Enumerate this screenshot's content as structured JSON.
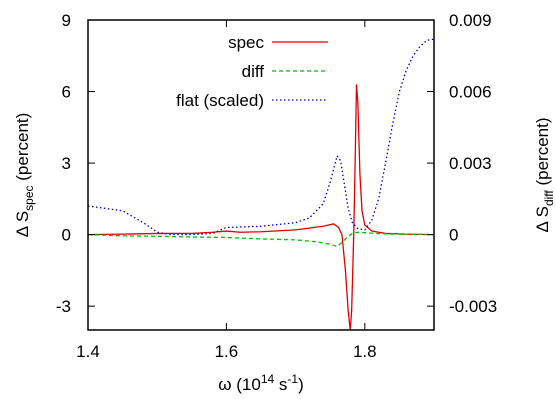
{
  "chart_data": {
    "type": "line",
    "xlabel": {
      "base": "ω (10",
      "sup1": "14",
      "mid": " s",
      "sup2": "-1",
      "tail": ")"
    },
    "ylabel_left": {
      "base": "Δ S",
      "sub": "spec",
      "tail": " (percent)"
    },
    "ylabel_right": {
      "base": "Δ S",
      "sub": "diff",
      "tail": " (percent)"
    },
    "xlim": [
      1.4,
      1.9
    ],
    "ylim_left": [
      -4,
      9
    ],
    "ylim_right": [
      -0.004,
      0.009
    ],
    "x_ticks": [
      {
        "v": 1.4,
        "label": "1.4"
      },
      {
        "v": 1.6,
        "label": "1.6"
      },
      {
        "v": 1.8,
        "label": "1.8"
      }
    ],
    "y_ticks_left": [
      {
        "v": -3,
        "label": "-3"
      },
      {
        "v": 0,
        "label": "0"
      },
      {
        "v": 3,
        "label": "3"
      },
      {
        "v": 6,
        "label": "6"
      },
      {
        "v": 9,
        "label": "9"
      }
    ],
    "y_ticks_right": [
      {
        "v": -0.003,
        "label": "-0.003"
      },
      {
        "v": 0,
        "label": "0"
      },
      {
        "v": 0.003,
        "label": "0.003"
      },
      {
        "v": 0.006,
        "label": "0.006"
      },
      {
        "v": 0.009,
        "label": "0.009"
      }
    ],
    "grid": false,
    "legend_position": "top-center",
    "series": [
      {
        "name": "spec",
        "axis": "left",
        "color": "#e00000",
        "dash": "solid",
        "points": [
          [
            1.4,
            0
          ],
          [
            1.45,
            0.02
          ],
          [
            1.5,
            0.05
          ],
          [
            1.55,
            0.05
          ],
          [
            1.58,
            0.1
          ],
          [
            1.6,
            0.15
          ],
          [
            1.62,
            0.1
          ],
          [
            1.65,
            0.12
          ],
          [
            1.7,
            0.2
          ],
          [
            1.74,
            0.35
          ],
          [
            1.755,
            0.45
          ],
          [
            1.762,
            0.3
          ],
          [
            1.767,
            0
          ],
          [
            1.772,
            -1.5
          ],
          [
            1.776,
            -3.2
          ],
          [
            1.779,
            -4
          ],
          [
            1.781,
            -3.2
          ],
          [
            1.784,
            0
          ],
          [
            1.786,
            3
          ],
          [
            1.788,
            6.3
          ],
          [
            1.79,
            5.5
          ],
          [
            1.793,
            2.5
          ],
          [
            1.796,
            1
          ],
          [
            1.8,
            0.4
          ],
          [
            1.81,
            0.15
          ],
          [
            1.83,
            0.05
          ],
          [
            1.86,
            0.02
          ],
          [
            1.9,
            0
          ]
        ]
      },
      {
        "name": "diff",
        "axis": "left",
        "color": "#00c000",
        "dash": "dashed",
        "points": [
          [
            1.4,
            0
          ],
          [
            1.45,
            -0.05
          ],
          [
            1.5,
            -0.07
          ],
          [
            1.55,
            -0.1
          ],
          [
            1.6,
            -0.12
          ],
          [
            1.65,
            -0.18
          ],
          [
            1.7,
            -0.22
          ],
          [
            1.73,
            -0.3
          ],
          [
            1.75,
            -0.4
          ],
          [
            1.76,
            -0.5
          ],
          [
            1.768,
            -0.3
          ],
          [
            1.775,
            -0.1
          ],
          [
            1.782,
            0.05
          ],
          [
            1.79,
            0.1
          ],
          [
            1.8,
            0.08
          ],
          [
            1.82,
            0.04
          ],
          [
            1.85,
            0.02
          ],
          [
            1.9,
            0
          ]
        ]
      },
      {
        "name": "flat (scaled)",
        "axis": "left",
        "color": "#0000c0",
        "dash": "dotted",
        "points": [
          [
            1.4,
            1.2
          ],
          [
            1.45,
            1
          ],
          [
            1.48,
            0.5
          ],
          [
            1.5,
            0.1
          ],
          [
            1.52,
            0
          ],
          [
            1.55,
            0
          ],
          [
            1.58,
            0.05
          ],
          [
            1.6,
            0.3
          ],
          [
            1.65,
            0.35
          ],
          [
            1.7,
            0.5
          ],
          [
            1.72,
            0.7
          ],
          [
            1.74,
            1.3
          ],
          [
            1.75,
            2.2
          ],
          [
            1.76,
            3.3
          ],
          [
            1.765,
            3.1
          ],
          [
            1.77,
            2.2
          ],
          [
            1.776,
            1.1
          ],
          [
            1.782,
            0.5
          ],
          [
            1.79,
            0.25
          ],
          [
            1.8,
            0.2
          ],
          [
            1.81,
            0.6
          ],
          [
            1.82,
            1.5
          ],
          [
            1.83,
            3
          ],
          [
            1.84,
            4.6
          ],
          [
            1.85,
            6
          ],
          [
            1.86,
            6.9
          ],
          [
            1.87,
            7.5
          ],
          [
            1.88,
            7.9
          ],
          [
            1.89,
            8.15
          ],
          [
            1.9,
            8.2
          ]
        ]
      }
    ]
  }
}
